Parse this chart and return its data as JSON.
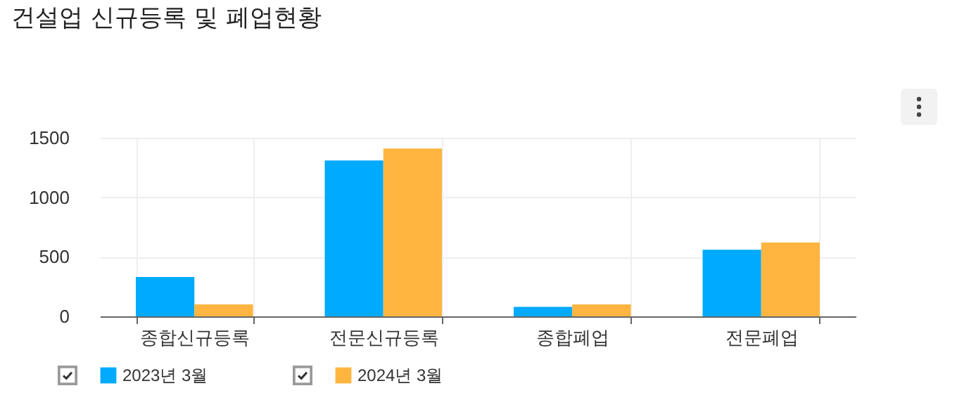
{
  "chart_data": {
    "type": "bar",
    "title": "건설업 신규등록 및 폐업현황",
    "categories": [
      "종합신규등록",
      "전문신규등록",
      "종합폐업",
      "전문폐업"
    ],
    "series": [
      {
        "name": "2023년 3월",
        "color": "#00aaff",
        "values": [
          330,
          1310,
          80,
          560
        ]
      },
      {
        "name": "2024년 3월",
        "color": "#ffb53f",
        "values": [
          100,
          1410,
          100,
          620
        ]
      }
    ],
    "ylim": [
      0,
      1500
    ],
    "yticks": [
      0,
      500,
      1000,
      1500
    ],
    "grid": true,
    "legend": "bottom"
  }
}
